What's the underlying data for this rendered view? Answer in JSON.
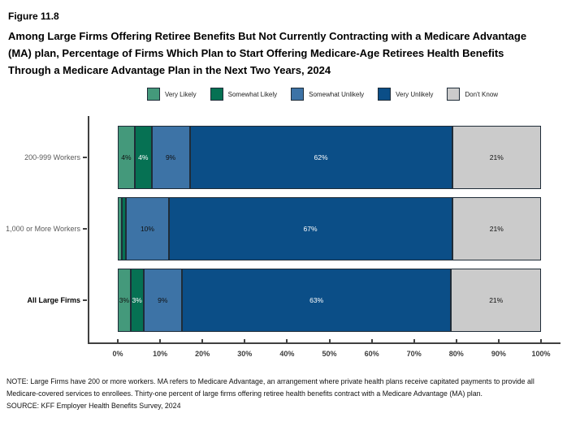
{
  "figure_label": "Figure 11.8",
  "title": "Among Large Firms Offering Retiree Benefits But Not Currently Contracting with a Medicare Advantage (MA) plan, Percentage of Firms Which Plan to Start Offering Medicare-Age Retirees Health Benefits Through a Medicare Advantage Plan in the Next Two Years, 2024",
  "colors": {
    "very_likely": "#44997B",
    "somewhat_likely": "#067153",
    "somewhat_unlikely": "#3D73A6",
    "very_unlikely": "#0B4E87",
    "dont_know": "#CBCBCB",
    "segment_border": "#1F2C38",
    "axis": "#404040"
  },
  "chart_data": {
    "type": "bar",
    "orientation": "horizontal",
    "stacked": true,
    "categories": [
      "200-999 Workers",
      "1,000 or More Workers",
      "All Large Firms"
    ],
    "category_emphasis": [
      false,
      false,
      true
    ],
    "series": [
      {
        "name": "Very Likely",
        "color": "#44997B",
        "label_color": "#111111",
        "values": [
          4,
          1,
          3
        ]
      },
      {
        "name": "Somewhat Likely",
        "color": "#067153",
        "label_color": "#FFFFFF",
        "values": [
          4,
          1,
          3
        ]
      },
      {
        "name": "Somewhat Unlikely",
        "color": "#3D73A6",
        "label_color": "#111111",
        "values": [
          9,
          10,
          9
        ]
      },
      {
        "name": "Very Unlikely",
        "color": "#0B4E87",
        "label_color": "#FFFFFF",
        "values": [
          62,
          67,
          63
        ]
      },
      {
        "name": "Don't Know",
        "color": "#CBCBCB",
        "label_color": "#111111",
        "values": [
          21,
          21,
          21
        ]
      }
    ],
    "data_labels": [
      [
        "4%",
        "4%",
        "9%",
        "62%",
        "21%"
      ],
      [
        "",
        "",
        "10%",
        "67%",
        "21%"
      ],
      [
        "3%",
        "3%",
        "9%",
        "63%",
        "21%"
      ]
    ],
    "x_tick_labels": [
      "0%",
      "10%",
      "20%",
      "30%",
      "40%",
      "50%",
      "60%",
      "70%",
      "80%",
      "90%",
      "100%"
    ],
    "xlim": [
      0,
      100
    ],
    "grid": false,
    "legend_position": "top"
  },
  "notes": {
    "note": "NOTE: Large Firms have 200 or more workers.  MA refers to Medicare Advantage, an arrangement where private health plans receive capitated payments to provide all Medicare-covered services to enrollees.  Thirty-one percent of large firms offering retiree health benefits contract with a Medicare Advantage (MA) plan.",
    "source": "SOURCE: KFF Employer Health Benefits Survey, 2024"
  }
}
